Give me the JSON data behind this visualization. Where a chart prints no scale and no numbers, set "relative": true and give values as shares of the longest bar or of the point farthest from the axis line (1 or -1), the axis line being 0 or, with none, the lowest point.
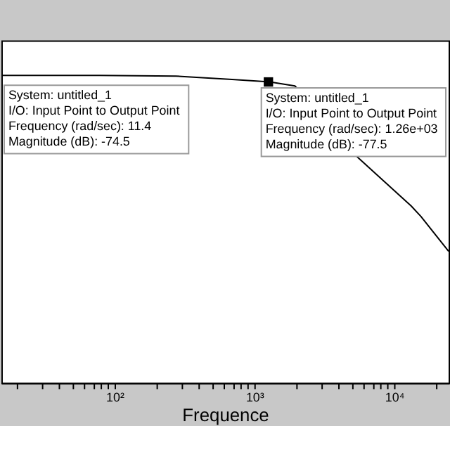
{
  "chart_data": {
    "type": "line",
    "relative": true,
    "xlabel": "Frequence",
    "log": "x",
    "xlim": [
      15.5,
      24500
    ],
    "xticks": [
      {
        "value": 20,
        "label": null
      },
      {
        "value": 30,
        "label": null
      },
      {
        "value": 40,
        "label": null
      },
      {
        "value": 50,
        "label": null
      },
      {
        "value": 60,
        "label": null
      },
      {
        "value": 70,
        "label": null
      },
      {
        "value": 80,
        "label": null
      },
      {
        "value": 90,
        "label": null
      },
      {
        "value": 100,
        "label": "10²"
      },
      {
        "value": 200,
        "label": null
      },
      {
        "value": 300,
        "label": null
      },
      {
        "value": 400,
        "label": null
      },
      {
        "value": 500,
        "label": null
      },
      {
        "value": 600,
        "label": null
      },
      {
        "value": 700,
        "label": null
      },
      {
        "value": 800,
        "label": null
      },
      {
        "value": 900,
        "label": null
      },
      {
        "value": 1000,
        "label": "10³"
      },
      {
        "value": 2000,
        "label": null
      },
      {
        "value": 3000,
        "label": null
      },
      {
        "value": 4000,
        "label": null
      },
      {
        "value": 5000,
        "label": null
      },
      {
        "value": 6000,
        "label": null
      },
      {
        "value": 7000,
        "label": null
      },
      {
        "value": 8000,
        "label": null
      },
      {
        "value": 9000,
        "label": null
      },
      {
        "value": 10000,
        "label": "10⁴"
      },
      {
        "value": 20000,
        "label": null
      }
    ],
    "grid": false,
    "tick_labels": "x",
    "series": [
      {
        "color": "#000000",
        "marker": "none",
        "line_style": "solid",
        "x": [
          15.5,
          77.6,
          275,
          692,
          1290,
          1950,
          5500,
          13200,
          15500,
          24500
        ],
        "values": [
          1,
          1,
          0.998,
          0.987,
          0.979,
          0.966,
          0.733,
          0.576,
          0.542,
          0.428
        ]
      },
      {
        "type": "scatter",
        "color": "#000000",
        "marker": "square",
        "x": [
          1260
        ],
        "values": [
          0.979
        ]
      }
    ],
    "annotations": [
      "System: untitled_1\nI/O: Input Point to Output Point\nFrequency (rad/sec): 11.4\nMagnitude (dB): -74.5",
      "System: untitled_1\nI/O: Input Point to Output Point\nFrequency (rad/sec): 1.26e+03\nMagnitude (dB): -77.5"
    ]
  }
}
